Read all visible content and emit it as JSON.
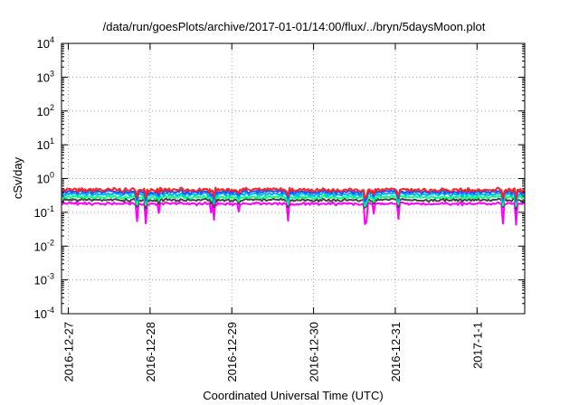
{
  "chart_data": {
    "type": "line",
    "title": "/data/run/goesPlots/archive/2017-01-01/14:00/flux/../bryn/5daysMoon.plot",
    "xlabel": "Coordinated Universal Time (UTC)",
    "ylabel": "cSv/day",
    "yscale": "log",
    "ylim_exponent": [
      -4,
      4
    ],
    "y_ticks": [
      {
        "base": "10",
        "exp": "-4"
      },
      {
        "base": "10",
        "exp": "-3"
      },
      {
        "base": "10",
        "exp": "-2"
      },
      {
        "base": "10",
        "exp": "-1"
      },
      {
        "base": "10",
        "exp": "0"
      },
      {
        "base": "10",
        "exp": "1"
      },
      {
        "base": "10",
        "exp": "2"
      },
      {
        "base": "10",
        "exp": "3"
      },
      {
        "base": "10",
        "exp": "4"
      }
    ],
    "x_start": "2016-12-26 22:00",
    "x_end": "2017-01-01 14:00",
    "x_ticks": [
      "2016-12-27",
      "2016-12-28",
      "2016-12-29",
      "2016-12-30",
      "2016-12-31",
      "2017-1-1"
    ],
    "grid": true,
    "series": [
      {
        "color": "#ff00ff",
        "baseline": 0.18
      },
      {
        "color": "#444444",
        "baseline": 0.23
      },
      {
        "color": "#00ff80",
        "baseline": 0.28
      },
      {
        "color": "#00b0ff",
        "baseline": 0.34
      },
      {
        "color": "#2050ff",
        "baseline": 0.4
      },
      {
        "color": "#ff2020",
        "baseline": 0.46
      }
    ]
  }
}
